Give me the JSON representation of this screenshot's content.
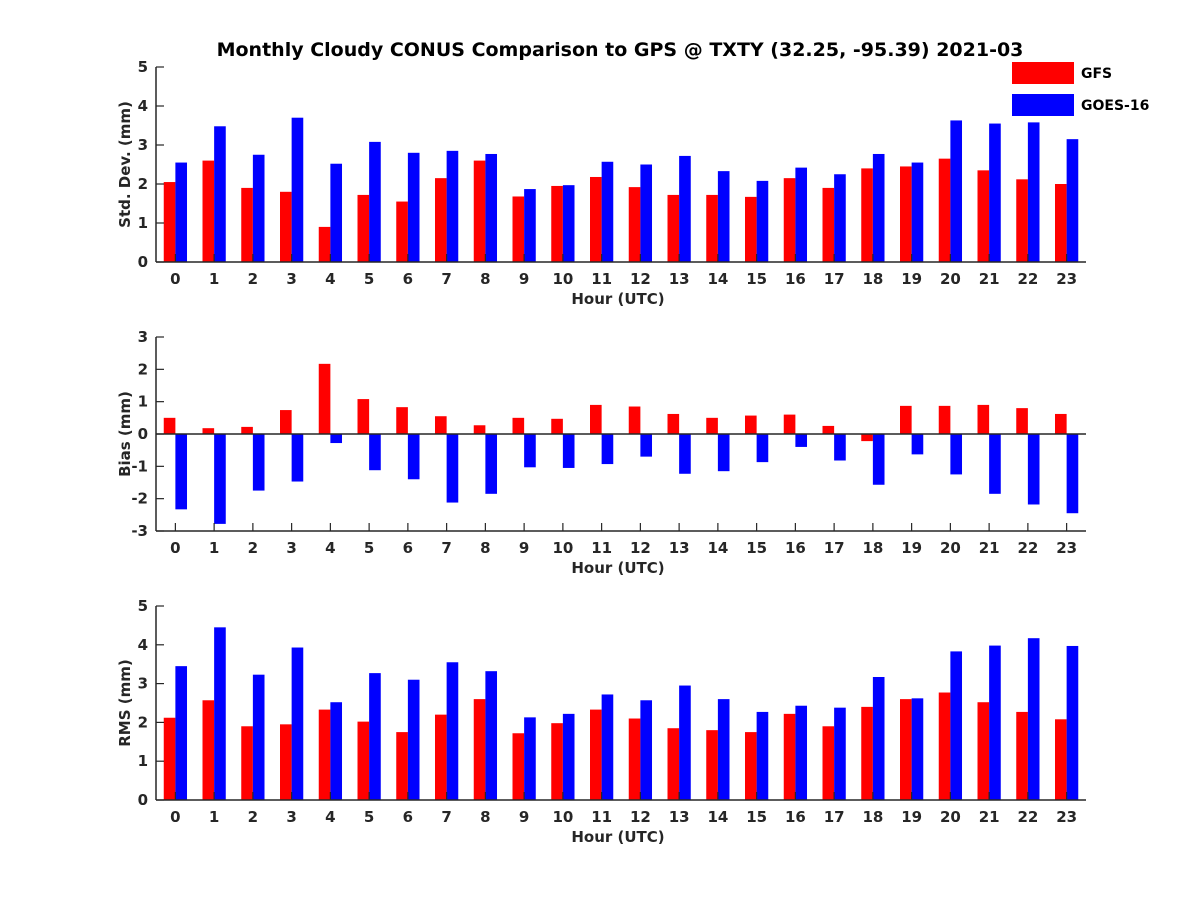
{
  "title": "Monthly Cloudy CONUS Comparison to GPS @ TXTY (32.25, -95.39) 2021-03",
  "colors": {
    "GFS": "#ff0000",
    "GOES-16": "#0000ff",
    "axis": "#262626"
  },
  "chart_data": [
    {
      "type": "bar",
      "id": "std",
      "ylabel": "Std. Dev. (mm)",
      "xlabel": "Hour (UTC)",
      "ylim": [
        0,
        5
      ],
      "yticks": [
        0,
        1,
        2,
        3,
        4,
        5
      ],
      "legend": "top-right",
      "categories": [
        "0",
        "1",
        "2",
        "3",
        "4",
        "5",
        "6",
        "7",
        "8",
        "9",
        "10",
        "11",
        "12",
        "13",
        "14",
        "15",
        "16",
        "17",
        "18",
        "19",
        "20",
        "21",
        "22",
        "23"
      ],
      "series": [
        {
          "name": "GFS",
          "values": [
            2.05,
            2.6,
            1.9,
            1.8,
            0.9,
            1.72,
            1.55,
            2.15,
            2.6,
            1.68,
            1.95,
            2.18,
            1.92,
            1.72,
            1.72,
            1.67,
            2.15,
            1.9,
            2.4,
            2.45,
            2.65,
            2.35,
            2.12,
            2.0
          ]
        },
        {
          "name": "GOES-16",
          "values": [
            2.55,
            3.48,
            2.75,
            3.7,
            2.52,
            3.08,
            2.8,
            2.85,
            2.77,
            1.87,
            1.97,
            2.57,
            2.5,
            2.72,
            2.33,
            2.08,
            2.42,
            2.25,
            2.77,
            2.55,
            3.63,
            3.55,
            3.58,
            3.15
          ]
        }
      ]
    },
    {
      "type": "bar",
      "id": "bias",
      "ylabel": "Bias (mm)",
      "xlabel": "Hour (UTC)",
      "ylim": [
        -3,
        3
      ],
      "yticks": [
        -3,
        -2,
        -1,
        0,
        1,
        2,
        3
      ],
      "zero_line": true,
      "categories": [
        "0",
        "1",
        "2",
        "3",
        "4",
        "5",
        "6",
        "7",
        "8",
        "9",
        "10",
        "11",
        "12",
        "13",
        "14",
        "15",
        "16",
        "17",
        "18",
        "19",
        "20",
        "21",
        "22",
        "23"
      ],
      "series": [
        {
          "name": "GFS",
          "values": [
            0.5,
            0.18,
            0.22,
            0.74,
            2.17,
            1.08,
            0.83,
            0.55,
            0.27,
            0.5,
            0.47,
            0.9,
            0.85,
            0.62,
            0.5,
            0.57,
            0.6,
            0.25,
            -0.22,
            0.87,
            0.87,
            0.9,
            0.8,
            0.62
          ]
        },
        {
          "name": "GOES-16",
          "values": [
            -2.33,
            -2.78,
            -1.75,
            -1.47,
            -0.28,
            -1.12,
            -1.4,
            -2.12,
            -1.85,
            -1.03,
            -1.05,
            -0.93,
            -0.7,
            -1.23,
            -1.15,
            -0.87,
            -0.4,
            -0.82,
            -1.57,
            -0.63,
            -1.25,
            -1.85,
            -2.18,
            -2.45
          ]
        }
      ]
    },
    {
      "type": "bar",
      "id": "rms",
      "ylabel": "RMS (mm)",
      "xlabel": "Hour (UTC)",
      "ylim": [
        0,
        5
      ],
      "yticks": [
        0,
        1,
        2,
        3,
        4,
        5
      ],
      "categories": [
        "0",
        "1",
        "2",
        "3",
        "4",
        "5",
        "6",
        "7",
        "8",
        "9",
        "10",
        "11",
        "12",
        "13",
        "14",
        "15",
        "16",
        "17",
        "18",
        "19",
        "20",
        "21",
        "22",
        "23"
      ],
      "series": [
        {
          "name": "GFS",
          "values": [
            2.12,
            2.57,
            1.9,
            1.95,
            2.33,
            2.02,
            1.75,
            2.2,
            2.6,
            1.72,
            1.98,
            2.33,
            2.1,
            1.85,
            1.8,
            1.75,
            2.22,
            1.9,
            2.4,
            2.6,
            2.77,
            2.52,
            2.27,
            2.08
          ]
        },
        {
          "name": "GOES-16",
          "values": [
            3.45,
            4.45,
            3.23,
            3.93,
            2.52,
            3.27,
            3.1,
            3.55,
            3.32,
            2.13,
            2.22,
            2.72,
            2.57,
            2.95,
            2.6,
            2.27,
            2.43,
            2.38,
            3.17,
            2.62,
            3.83,
            3.98,
            4.17,
            3.97
          ]
        }
      ]
    }
  ]
}
